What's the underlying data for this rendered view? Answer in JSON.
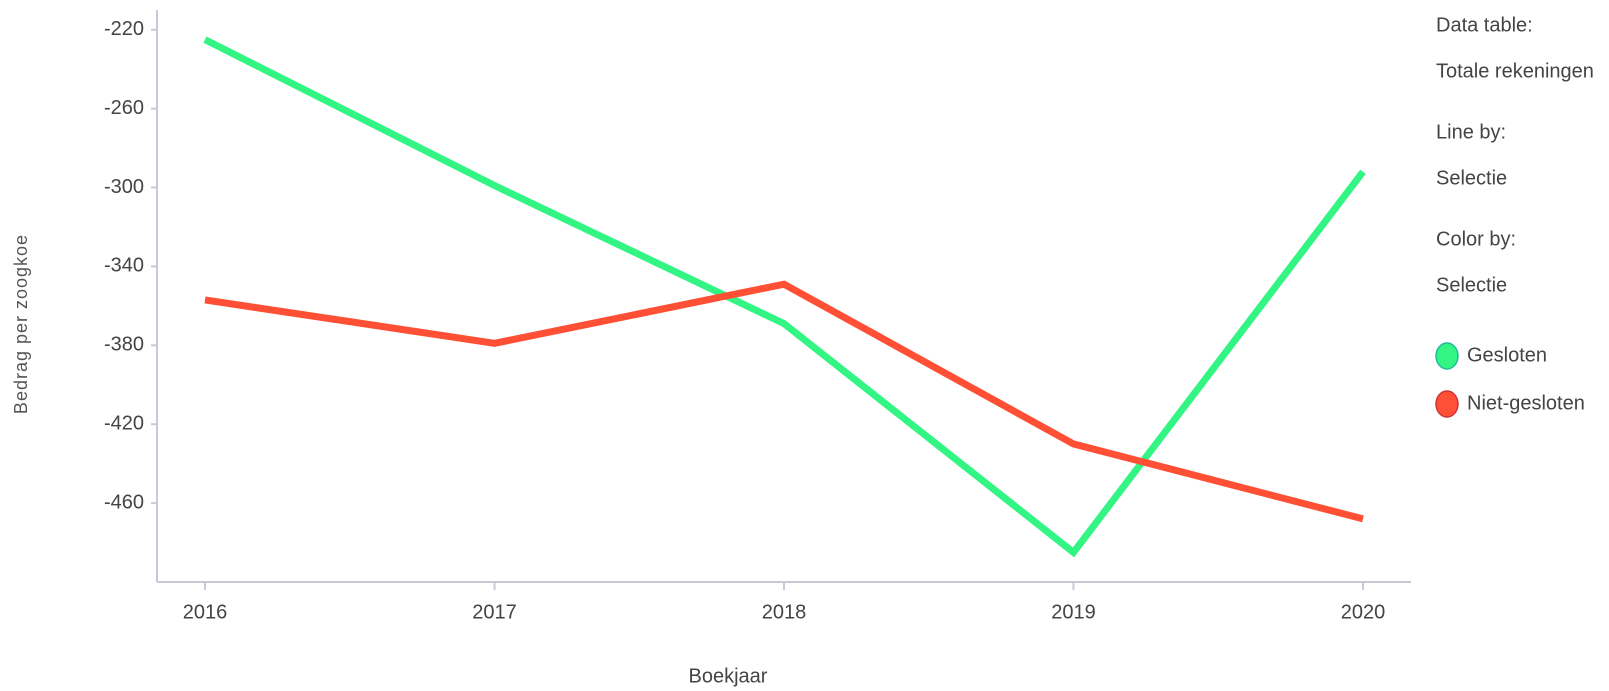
{
  "chart_data": {
    "type": "line",
    "x_label": "Boekjaar",
    "y_label": "Bedrag per zoogkoe",
    "categories": [
      "2016",
      "2017",
      "2018",
      "2019",
      "2020"
    ],
    "series": [
      {
        "name": "Gesloten",
        "color": "#33f584",
        "values": [
          -225,
          -299,
          -369,
          -485,
          -292
        ]
      },
      {
        "name": "Niet-gesloten",
        "color": "#ff5035",
        "values": [
          -357,
          -379,
          -349,
          -430,
          -468
        ]
      }
    ],
    "ylim": [
      -500,
      -210
    ],
    "yticks": [
      -220,
      -260,
      -300,
      -340,
      -380,
      -420,
      -460
    ],
    "side_panel": [
      {
        "label": "Data table:",
        "value": "Totale rekeningen"
      },
      {
        "label": "Line by:",
        "value": "Selectie"
      },
      {
        "label": "Color by:",
        "value": "Selectie"
      }
    ]
  }
}
